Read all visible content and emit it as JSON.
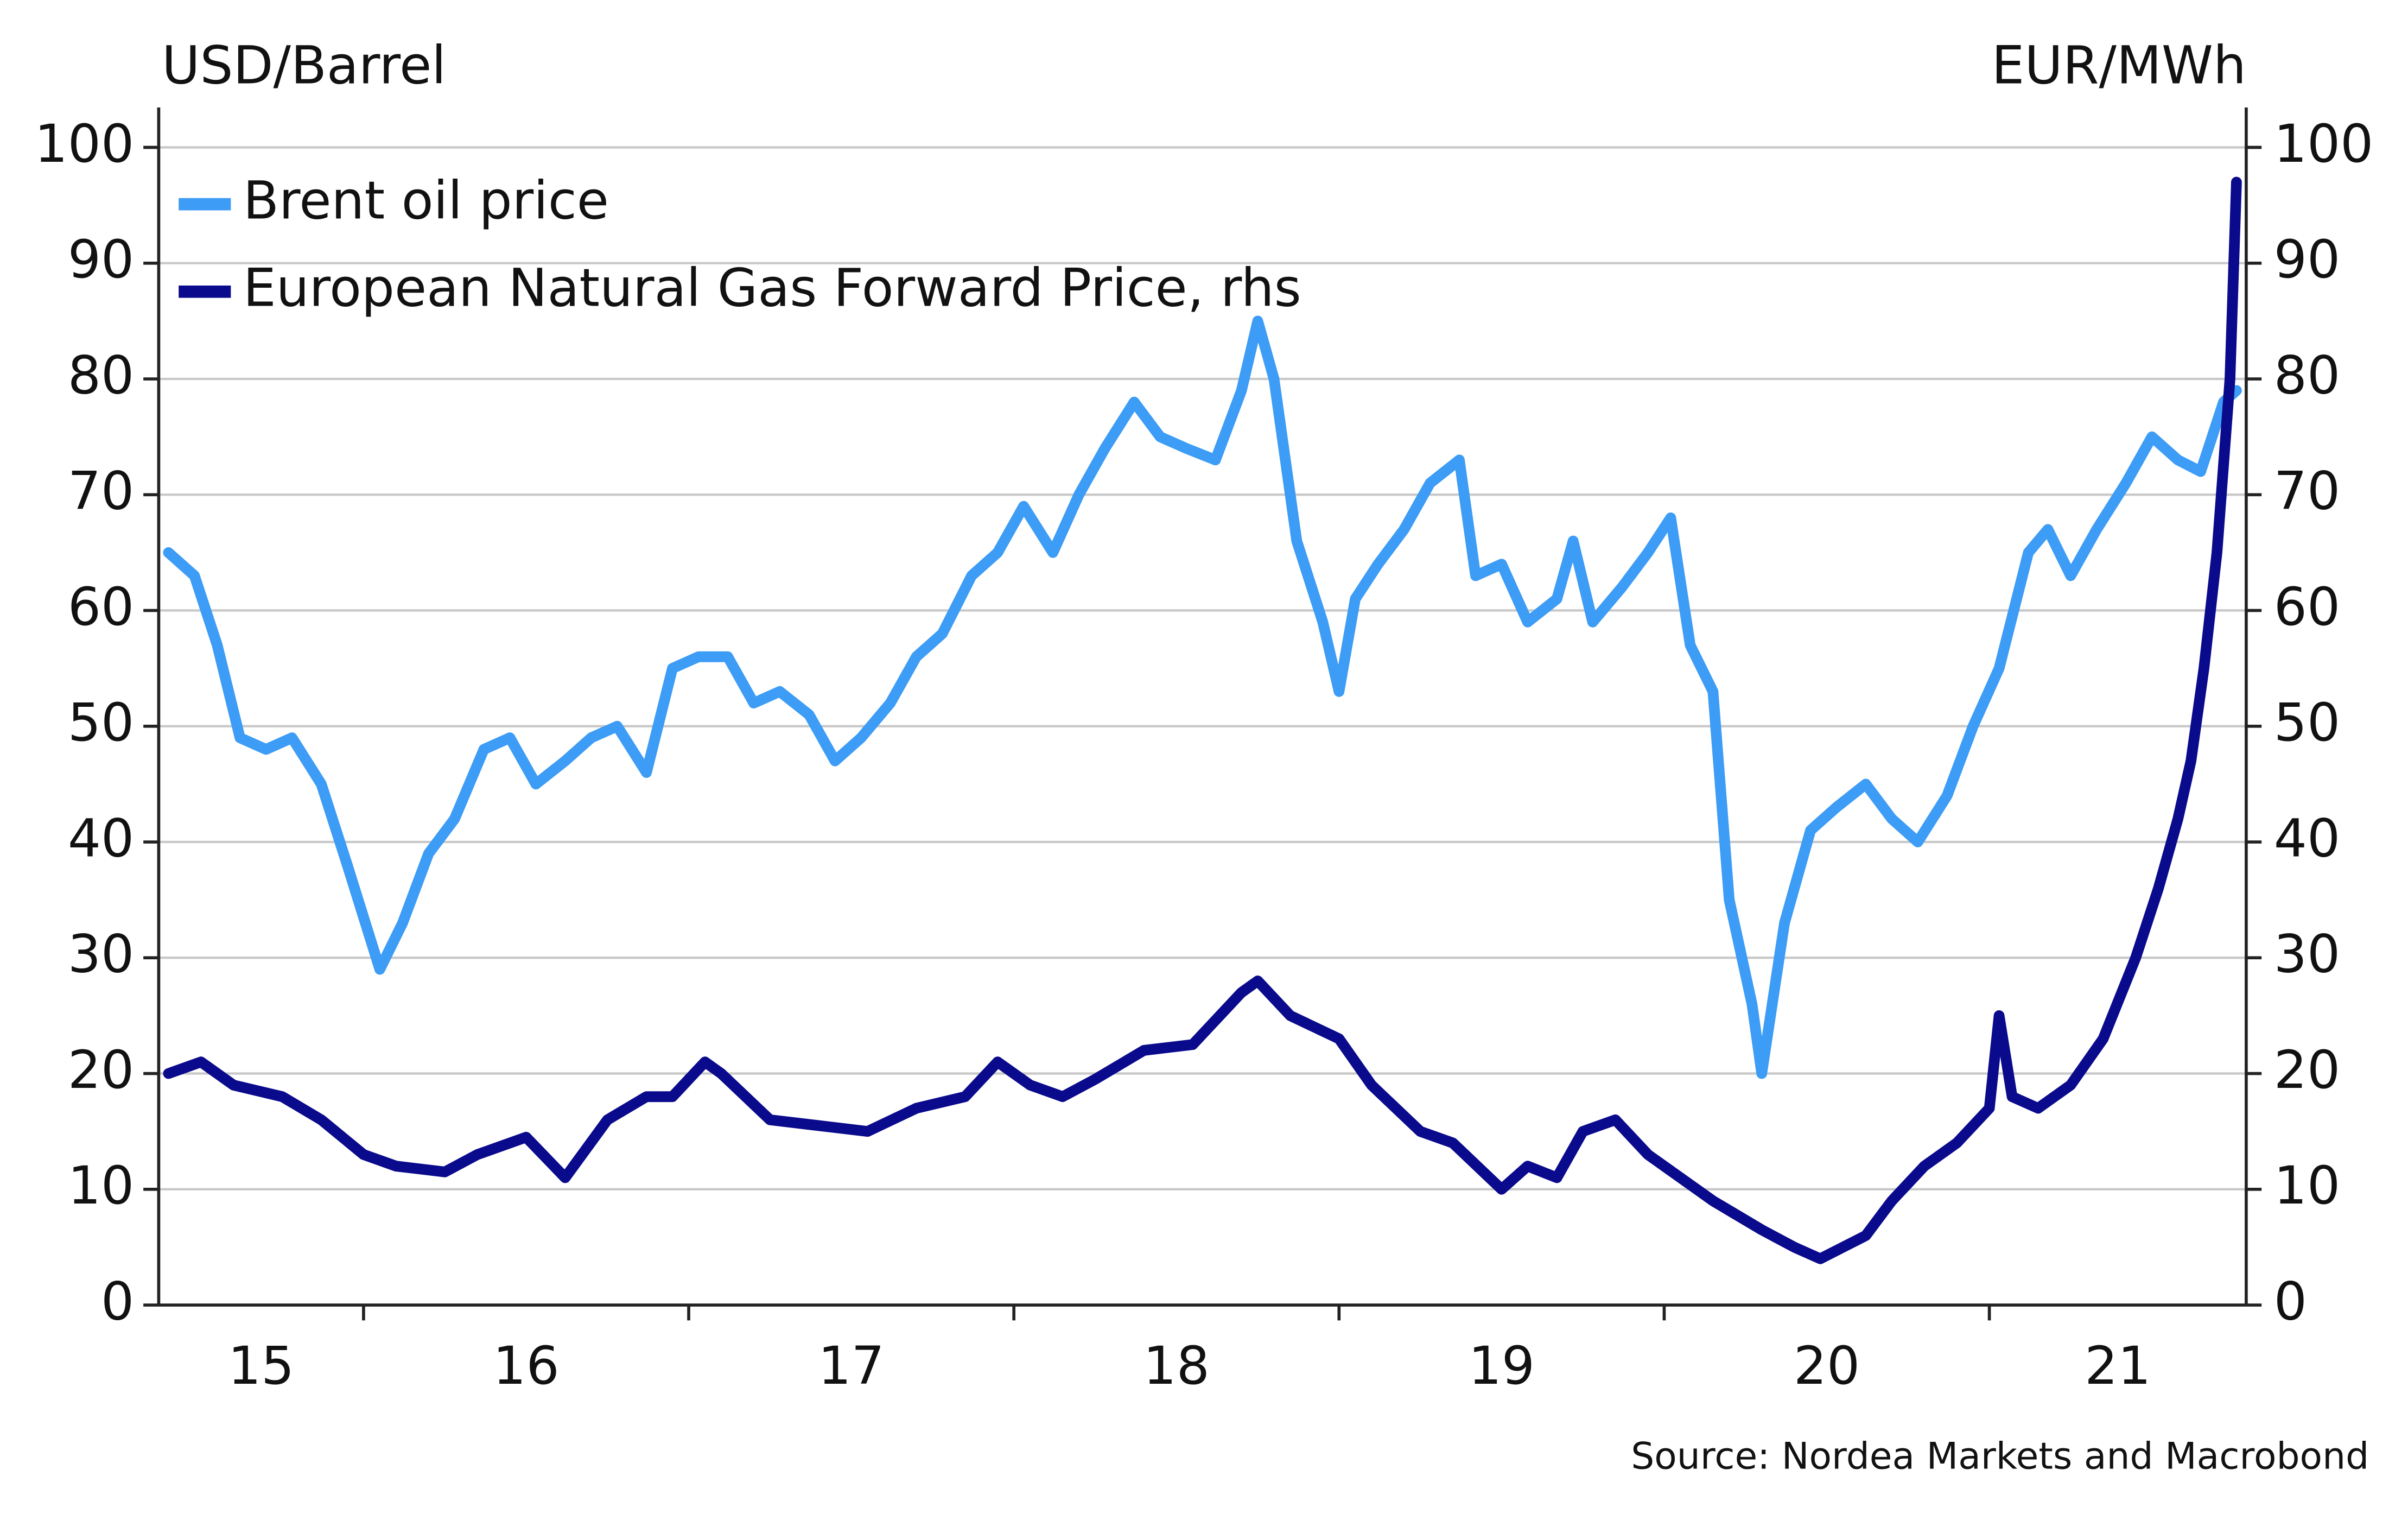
{
  "chart_data": {
    "type": "line",
    "y_label": "USD/Barrel",
    "y2_label": "EUR/MWh",
    "source": "Source: Nordea Markets and Macrobond",
    "xlim": [
      2015.37,
      2021.79
    ],
    "xticks": [
      {
        "value": 2015.685,
        "label": "15"
      },
      {
        "value": 2016.5,
        "label": "16"
      },
      {
        "value": 2017.5,
        "label": "17"
      },
      {
        "value": 2018.5,
        "label": "18"
      },
      {
        "value": 2019.5,
        "label": "19"
      },
      {
        "value": 2020.5,
        "label": "20"
      },
      {
        "value": 2021.395,
        "label": "21"
      }
    ],
    "xtick_marks": [
      2016,
      2017,
      2018,
      2019,
      2020,
      2021
    ],
    "ylim": [
      0,
      100
    ],
    "yticks": [
      0,
      10,
      20,
      30,
      40,
      50,
      60,
      70,
      80,
      90,
      100
    ],
    "y2lim": [
      0,
      100
    ],
    "y2ticks": [
      0,
      10,
      20,
      30,
      40,
      50,
      60,
      70,
      80,
      90,
      100
    ],
    "grid": true,
    "series": [
      {
        "name": "Brent oil price",
        "color": "#3d9cf5",
        "x": [
          2015.4,
          2015.48,
          2015.55,
          2015.62,
          2015.7,
          2015.78,
          2015.87,
          2015.95,
          2016.05,
          2016.12,
          2016.2,
          2016.28,
          2016.37,
          2016.45,
          2016.53,
          2016.62,
          2016.7,
          2016.78,
          2016.87,
          2016.95,
          2017.03,
          2017.12,
          2017.2,
          2017.28,
          2017.37,
          2017.45,
          2017.53,
          2017.62,
          2017.7,
          2017.78,
          2017.87,
          2017.95,
          2018.03,
          2018.12,
          2018.2,
          2018.28,
          2018.37,
          2018.45,
          2018.53,
          2018.62,
          2018.7,
          2018.75,
          2018.8,
          2018.87,
          2018.95,
          2019.0,
          2019.05,
          2019.12,
          2019.2,
          2019.28,
          2019.37,
          2019.42,
          2019.5,
          2019.58,
          2019.67,
          2019.72,
          2019.78,
          2019.87,
          2019.95,
          2020.02,
          2020.08,
          2020.15,
          2020.2,
          2020.27,
          2020.3,
          2020.37,
          2020.45,
          2020.53,
          2020.62,
          2020.7,
          2020.78,
          2020.87,
          2020.95,
          2021.03,
          2021.12,
          2021.18,
          2021.25,
          2021.33,
          2021.42,
          2021.5,
          2021.58,
          2021.65,
          2021.72,
          2021.76
        ],
        "values": [
          65,
          63,
          57,
          49,
          48,
          49,
          45,
          38,
          29,
          33,
          39,
          42,
          48,
          49,
          45,
          47,
          49,
          50,
          46,
          55,
          56,
          56,
          52,
          53,
          51,
          47,
          49,
          52,
          56,
          58,
          63,
          65,
          69,
          65,
          70,
          74,
          78,
          75,
          74,
          73,
          79,
          85,
          80,
          66,
          59,
          53,
          61,
          64,
          67,
          71,
          73,
          63,
          64,
          59,
          61,
          66,
          59,
          62,
          65,
          68,
          57,
          53,
          35,
          26,
          20,
          33,
          41,
          43,
          45,
          42,
          40,
          44,
          50,
          55,
          65,
          67,
          63,
          67,
          71,
          75,
          73,
          72,
          78,
          79
        ]
      },
      {
        "name": "European Natural Gas Forward Price, rhs",
        "color": "#0a0a8c",
        "axis": "y2",
        "x": [
          2015.4,
          2015.5,
          2015.6,
          2015.75,
          2015.87,
          2016.0,
          2016.1,
          2016.25,
          2016.35,
          2016.5,
          2016.62,
          2016.75,
          2016.87,
          2016.95,
          2017.05,
          2017.1,
          2017.25,
          2017.4,
          2017.55,
          2017.7,
          2017.85,
          2017.95,
          2018.05,
          2018.15,
          2018.25,
          2018.4,
          2018.55,
          2018.7,
          2018.75,
          2018.85,
          2019.0,
          2019.1,
          2019.25,
          2019.35,
          2019.5,
          2019.58,
          2019.67,
          2019.75,
          2019.85,
          2019.95,
          2020.05,
          2020.15,
          2020.3,
          2020.4,
          2020.48,
          2020.55,
          2020.62,
          2020.7,
          2020.8,
          2020.9,
          2021.0,
          2021.03,
          2021.07,
          2021.15,
          2021.25,
          2021.35,
          2021.45,
          2021.52,
          2021.58,
          2021.62,
          2021.66,
          2021.7,
          2021.74,
          2021.76
        ],
        "values": [
          20,
          21,
          19,
          18,
          16,
          13,
          12,
          11.5,
          13,
          14.5,
          11,
          16,
          18,
          18,
          21,
          20,
          16,
          15.5,
          15,
          17,
          18,
          21,
          19,
          18,
          19.5,
          22,
          22.5,
          27,
          28,
          25,
          23,
          19,
          15,
          14,
          10,
          12,
          11,
          15,
          16,
          13,
          11,
          9,
          6.5,
          5,
          4,
          5,
          6,
          9,
          12,
          14,
          17,
          25,
          18,
          17,
          19,
          23,
          30,
          36,
          42,
          47,
          55,
          65,
          80,
          97
        ]
      }
    ]
  }
}
